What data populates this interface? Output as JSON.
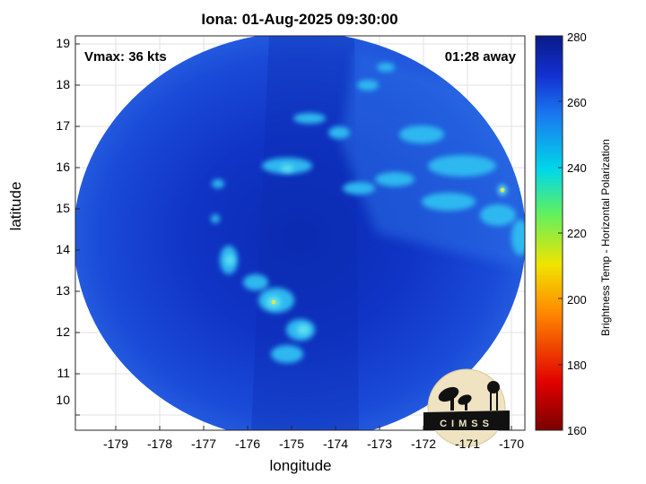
{
  "title": "Iona: 01-Aug-2025 09:30:00",
  "xlabel": "longitude",
  "ylabel": "latitude",
  "x_ticks": [
    "-179",
    "-178",
    "-177",
    "-176",
    "-175",
    "-174",
    "-173",
    "-172",
    "-171",
    "-170"
  ],
  "y_ticks": [
    "19",
    "18",
    "17",
    "16",
    "15",
    "14",
    "13",
    "12",
    "11",
    "10"
  ],
  "annotation_left": "Vmax: 36 kts",
  "annotation_right": "01:28 away",
  "colorbar": {
    "label": "Brightness Temp - Horizontal Polarization",
    "ticks": [
      "280",
      "260",
      "240",
      "220",
      "200",
      "180",
      "160"
    ],
    "range": [
      160,
      280
    ]
  },
  "logo_text": "CIMSS",
  "colors": {
    "background_blue": "#1a44d6",
    "core_blue": "#0b2fb8",
    "bright_feature": "#29c8f2",
    "hot_spot": "#d8e850"
  }
}
